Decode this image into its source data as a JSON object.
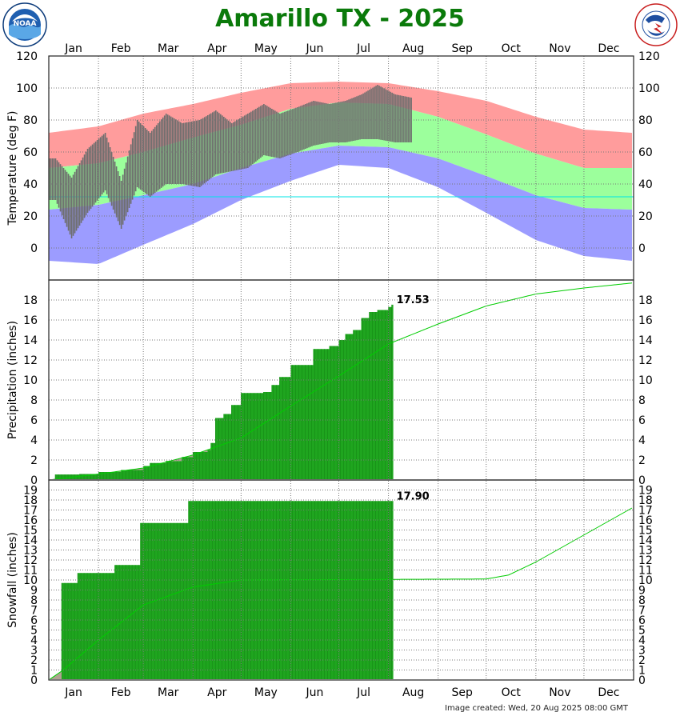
{
  "title": "Amarillo TX - 2025",
  "created": "Image created: Wed, 20 Aug 2025 08:00 GMT",
  "logos": {
    "left": "NOAA",
    "right": "NATIONAL WEATHER SERVICE"
  },
  "months": [
    "Jan",
    "Feb",
    "Mar",
    "Apr",
    "May",
    "Jun",
    "Jul",
    "Aug",
    "Sep",
    "Oct",
    "Nov",
    "Dec"
  ],
  "colors": {
    "title": "#0a7a0a",
    "record_high_band": "#ff9c9c",
    "normal_band": "#9cff9c",
    "record_low_band": "#9c9cff",
    "observed_temp": "#6e6e6e",
    "precip_bars": "#1fa51f",
    "normal_line": "#00cc00",
    "normal_fill": "#a89a86",
    "freezing_line": "#00e5e5"
  },
  "chart_data": [
    {
      "type": "area",
      "panel": "temperature",
      "ylabel": "Temperature (deg F)",
      "ylim": [
        -20,
        120
      ],
      "yticks": [
        0,
        20,
        40,
        60,
        80,
        100,
        120
      ],
      "grid": true,
      "freezing_line": 32,
      "x": [
        "Jan 1",
        "Feb 1",
        "Mar 1",
        "Apr 1",
        "May 1",
        "Jun 1",
        "Jul 1",
        "Aug 1",
        "Sep 1",
        "Oct 1",
        "Nov 1",
        "Dec 1",
        "Dec 31"
      ],
      "series": [
        {
          "role": "record_high",
          "values": [
            72,
            76,
            84,
            90,
            97,
            103,
            104,
            103,
            98,
            92,
            82,
            74,
            72
          ]
        },
        {
          "role": "normal_high",
          "values": [
            50,
            53,
            60,
            69,
            77,
            87,
            91,
            90,
            82,
            71,
            59,
            50,
            50
          ]
        },
        {
          "role": "normal_low",
          "values": [
            24,
            27,
            33,
            40,
            50,
            59,
            64,
            63,
            56,
            45,
            33,
            25,
            24
          ]
        },
        {
          "role": "record_low",
          "values": [
            -8,
            -10,
            2,
            15,
            30,
            42,
            52,
            50,
            38,
            22,
            5,
            -5,
            -8
          ]
        }
      ],
      "observed_range": [
        {
          "date": "Jan 5",
          "high": 56,
          "low": 30
        },
        {
          "date": "Jan 15",
          "high": 44,
          "low": 6
        },
        {
          "date": "Jan 25",
          "high": 62,
          "low": 22
        },
        {
          "date": "Feb 5",
          "high": 72,
          "low": 36
        },
        {
          "date": "Feb 15",
          "high": 42,
          "low": 12
        },
        {
          "date": "Feb 25",
          "high": 80,
          "low": 38
        },
        {
          "date": "Mar 5",
          "high": 72,
          "low": 32
        },
        {
          "date": "Mar 15",
          "high": 84,
          "low": 40
        },
        {
          "date": "Mar 25",
          "high": 78,
          "low": 40
        },
        {
          "date": "Apr 5",
          "high": 80,
          "low": 38
        },
        {
          "date": "Apr 15",
          "high": 86,
          "low": 46
        },
        {
          "date": "Apr 25",
          "high": 78,
          "low": 48
        },
        {
          "date": "May 5",
          "high": 84,
          "low": 50
        },
        {
          "date": "May 15",
          "high": 90,
          "low": 58
        },
        {
          "date": "May 25",
          "high": 84,
          "low": 56
        },
        {
          "date": "Jun 5",
          "high": 88,
          "low": 60
        },
        {
          "date": "Jun 15",
          "high": 92,
          "low": 64
        },
        {
          "date": "Jun 25",
          "high": 90,
          "low": 66
        },
        {
          "date": "Jul 5",
          "high": 92,
          "low": 66
        },
        {
          "date": "Jul 15",
          "high": 96,
          "low": 68
        },
        {
          "date": "Jul 25",
          "high": 102,
          "low": 68
        },
        {
          "date": "Aug 5",
          "high": 96,
          "low": 66
        },
        {
          "date": "Aug 15",
          "high": 94,
          "low": 66
        }
      ]
    },
    {
      "type": "bar",
      "panel": "precipitation",
      "ylabel": "Precipitation (inches)",
      "ylim": [
        0,
        20
      ],
      "yticks": [
        0,
        2,
        4,
        6,
        8,
        10,
        12,
        14,
        16,
        18
      ],
      "grid": true,
      "last_value_label": "17.53",
      "observed_cumulative": [
        {
          "date": "Jan 1",
          "value": 0.0
        },
        {
          "date": "Jan 5",
          "value": 0.55
        },
        {
          "date": "Jan 20",
          "value": 0.6
        },
        {
          "date": "Feb 1",
          "value": 0.8
        },
        {
          "date": "Feb 15",
          "value": 1.0
        },
        {
          "date": "Mar 1",
          "value": 1.4
        },
        {
          "date": "Mar 5",
          "value": 1.7
        },
        {
          "date": "Mar 15",
          "value": 1.9
        },
        {
          "date": "Mar 25",
          "value": 2.3
        },
        {
          "date": "Apr 1",
          "value": 2.8
        },
        {
          "date": "Apr 10",
          "value": 3.0
        },
        {
          "date": "Apr 12",
          "value": 3.7
        },
        {
          "date": "Apr 15",
          "value": 6.2
        },
        {
          "date": "Apr 20",
          "value": 6.6
        },
        {
          "date": "Apr 25",
          "value": 7.5
        },
        {
          "date": "May 1",
          "value": 8.7
        },
        {
          "date": "May 15",
          "value": 8.8
        },
        {
          "date": "May 20",
          "value": 9.5
        },
        {
          "date": "May 25",
          "value": 10.3
        },
        {
          "date": "Jun 1",
          "value": 11.5
        },
        {
          "date": "Jun 10",
          "value": 11.5
        },
        {
          "date": "Jun 15",
          "value": 13.1
        },
        {
          "date": "Jun 25",
          "value": 13.4
        },
        {
          "date": "Jul 1",
          "value": 14.0
        },
        {
          "date": "Jul 5",
          "value": 14.6
        },
        {
          "date": "Jul 10",
          "value": 15.0
        },
        {
          "date": "Jul 15",
          "value": 16.2
        },
        {
          "date": "Jul 20",
          "value": 16.8
        },
        {
          "date": "Jul 25",
          "value": 17.0
        },
        {
          "date": "Aug 1",
          "value": 17.3
        },
        {
          "date": "Aug 3",
          "value": 17.53
        }
      ],
      "normal_cumulative": [
        {
          "date": "Jan 1",
          "value": 0.0
        },
        {
          "date": "Feb 1",
          "value": 0.6
        },
        {
          "date": "Mar 1",
          "value": 1.2
        },
        {
          "date": "Apr 1",
          "value": 2.5
        },
        {
          "date": "May 1",
          "value": 4.2
        },
        {
          "date": "Jun 1",
          "value": 7.4
        },
        {
          "date": "Jul 1",
          "value": 10.4
        },
        {
          "date": "Aug 1",
          "value": 13.6
        },
        {
          "date": "Sep 1",
          "value": 15.6
        },
        {
          "date": "Oct 1",
          "value": 17.4
        },
        {
          "date": "Nov 1",
          "value": 18.6
        },
        {
          "date": "Dec 1",
          "value": 19.2
        },
        {
          "date": "Dec 31",
          "value": 19.7
        }
      ]
    },
    {
      "type": "bar",
      "panel": "snowfall",
      "ylabel": "Snowfall (inches)",
      "ylim": [
        0,
        20
      ],
      "yticks": [
        0,
        1,
        2,
        3,
        4,
        5,
        6,
        7,
        8,
        9,
        10,
        11,
        12,
        13,
        14,
        15,
        16,
        17,
        18,
        19
      ],
      "grid": true,
      "last_value_label": "17.90",
      "observed_cumulative": [
        {
          "date": "Jan 1",
          "value": 0.0
        },
        {
          "date": "Jan 9",
          "value": 9.7
        },
        {
          "date": "Jan 19",
          "value": 10.7
        },
        {
          "date": "Feb 11",
          "value": 11.5
        },
        {
          "date": "Feb 27",
          "value": 15.7
        },
        {
          "date": "Mar 29",
          "value": 17.9
        },
        {
          "date": "Aug 3",
          "value": 17.9
        }
      ],
      "normal_cumulative": [
        {
          "date": "Jan 1",
          "value": 0.0
        },
        {
          "date": "Jan 10",
          "value": 1.0
        },
        {
          "date": "Feb 1",
          "value": 4.0
        },
        {
          "date": "Mar 1",
          "value": 7.5
        },
        {
          "date": "Apr 1",
          "value": 9.3
        },
        {
          "date": "May 1",
          "value": 10.0
        },
        {
          "date": "Oct 1",
          "value": 10.1
        },
        {
          "date": "Oct 15",
          "value": 10.5
        },
        {
          "date": "Nov 1",
          "value": 11.8
        },
        {
          "date": "Dec 1",
          "value": 14.5
        },
        {
          "date": "Dec 31",
          "value": 17.2
        }
      ]
    }
  ]
}
